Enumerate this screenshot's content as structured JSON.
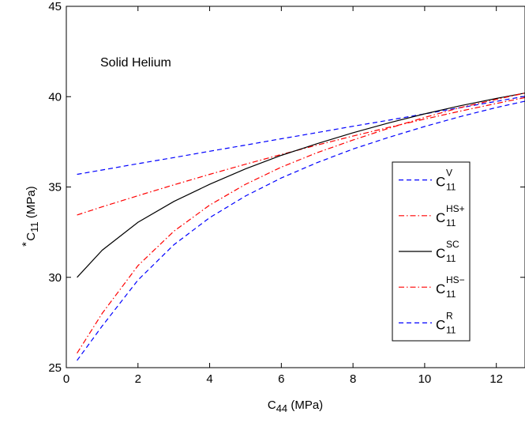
{
  "chart_data": {
    "type": "line",
    "annotation": "Solid Helium",
    "xlabel": {
      "main": "C",
      "sub": "44",
      "sup": "",
      "unit": " (MPa)"
    },
    "ylabel": {
      "main": "C",
      "sub": "11",
      "sup": "*",
      "unit": " (MPa)"
    },
    "xlim": [
      0,
      12.8
    ],
    "ylim": [
      25,
      45
    ],
    "xticks": [
      0,
      2,
      4,
      6,
      8,
      10,
      12
    ],
    "yticks": [
      25,
      30,
      35,
      40,
      45
    ],
    "grid": false,
    "legend_position": "right",
    "series": [
      {
        "name": "C",
        "name_sub": "11",
        "name_sup": "V",
        "color": "#0000ff",
        "dash": "6,4",
        "x": [
          0.3,
          1,
          2,
          3,
          4,
          5,
          6,
          7,
          8,
          9,
          10,
          11,
          12,
          12.8
        ],
        "y": [
          35.7,
          35.94,
          36.29,
          36.63,
          36.98,
          37.32,
          37.67,
          38.01,
          38.36,
          38.7,
          39.05,
          39.39,
          39.74,
          40.02
        ]
      },
      {
        "name": "C",
        "name_sub": "11",
        "name_sup": "HS+",
        "color": "#ff0000",
        "dash": "7,3,1.5,3",
        "x": [
          0.3,
          1,
          2,
          3,
          4,
          5,
          6,
          7,
          8,
          9,
          10,
          11,
          12,
          12.8
        ],
        "y": [
          33.45,
          33.9,
          34.52,
          35.12,
          35.7,
          36.26,
          36.8,
          37.32,
          37.82,
          38.3,
          38.76,
          39.2,
          39.62,
          39.95
        ]
      },
      {
        "name": "C",
        "name_sub": "11",
        "name_sup": "SC",
        "color": "#000000",
        "dash": "",
        "x": [
          0.3,
          1,
          2,
          3,
          4,
          5,
          6,
          7,
          8,
          9,
          10,
          11,
          12,
          12.8
        ],
        "y": [
          30.0,
          31.5,
          33.05,
          34.2,
          35.15,
          36.0,
          36.75,
          37.4,
          38.0,
          38.55,
          39.05,
          39.5,
          39.9,
          40.2
        ]
      },
      {
        "name": "C",
        "name_sub": "11",
        "name_sup": "HS−",
        "color": "#ff0000",
        "dash": "7,3,1.5,3",
        "x": [
          0.3,
          1,
          2,
          3,
          4,
          5,
          6,
          7,
          8,
          9,
          10,
          11,
          12,
          12.8
        ],
        "y": [
          25.8,
          28.0,
          30.65,
          32.55,
          34.0,
          35.15,
          36.1,
          36.9,
          37.6,
          38.25,
          38.85,
          39.4,
          39.85,
          40.2
        ]
      },
      {
        "name": "C",
        "name_sub": "11",
        "name_sup": "R",
        "color": "#0000ff",
        "dash": "6,4",
        "x": [
          0.3,
          1,
          2,
          3,
          4,
          5,
          6,
          7,
          8,
          9,
          10,
          11,
          12,
          12.8
        ],
        "y": [
          25.4,
          27.3,
          29.85,
          31.8,
          33.3,
          34.5,
          35.5,
          36.35,
          37.1,
          37.75,
          38.35,
          38.9,
          39.4,
          39.75
        ]
      }
    ]
  }
}
